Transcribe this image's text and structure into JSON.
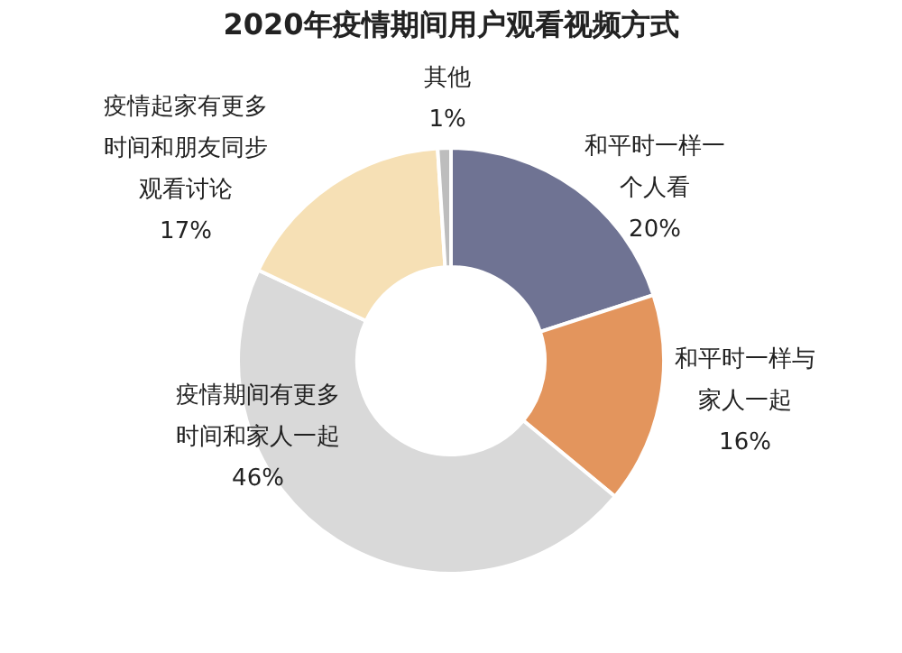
{
  "chart_data": {
    "type": "donut",
    "title": "2020年疫情期间用户观看视频方式",
    "categories": [
      "和平时一样一个人看",
      "和平时一样与家人一起",
      "疫情期间有更多时间和家人一起",
      "疫情起家有更多时间和朋友同步观看讨论",
      "其他"
    ],
    "values": [
      20,
      16,
      46,
      17,
      1
    ],
    "colors": [
      "#6f7393",
      "#e3955d",
      "#d9d9d9",
      "#f6e0b5",
      "#bdbdbd"
    ],
    "value_labels": [
      "20%",
      "16%",
      "46%",
      "17%",
      "1%"
    ]
  }
}
